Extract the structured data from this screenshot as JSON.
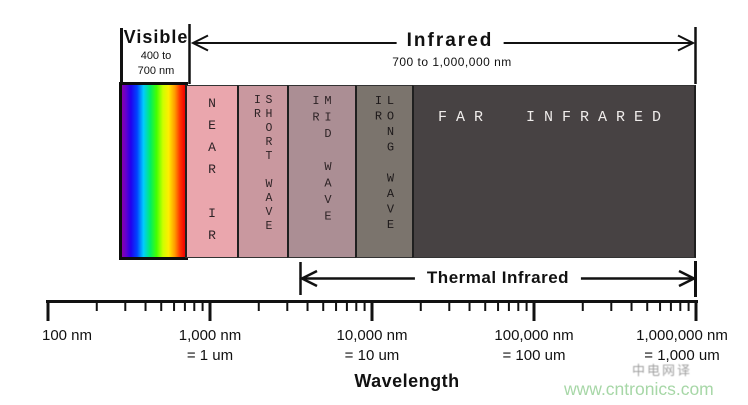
{
  "header": {
    "visible": {
      "label": "Visible",
      "range1": "400 to",
      "range2": "700 nm"
    },
    "infrared": {
      "label": "Infrared",
      "range": "700 to 1,000,000 nm"
    }
  },
  "bands": [
    {
      "name": "visible-spectrum",
      "label": "",
      "color": "rainbow-gradient"
    },
    {
      "name": "near-ir",
      "label": "NEAR IR",
      "color": "#eaa6ad",
      "text_color": "#2e2326"
    },
    {
      "name": "short-wave-ir",
      "label": "SHORT WAVE IR",
      "color": "#c9989f",
      "text_color": "#2e2326"
    },
    {
      "name": "mid-wave-ir",
      "label": "MID WAVE IR",
      "color": "#ab8e94",
      "text_color": "#2e2326"
    },
    {
      "name": "long-wave-ir",
      "label": "LONG WAVE IR",
      "color": "#7b746d",
      "text_color": "#1d191a"
    },
    {
      "name": "far-infrared",
      "label": "FAR INFRARED",
      "color": "#474243",
      "text_color": "#efeceb"
    }
  ],
  "thermal": {
    "label": "Thermal Infrared"
  },
  "chart_data": {
    "type": "diagram",
    "title": "Infrared spectrum regions",
    "axis": {
      "scale": "log10",
      "unit": "nm",
      "min_nm": 100,
      "max_nm": 1000000,
      "axis_title": "Wavelength",
      "major_ticks": [
        {
          "value": 100,
          "label": "100 nm",
          "sublabel": ""
        },
        {
          "value": 1000,
          "label": "1,000 nm",
          "sublabel": "= 1 um"
        },
        {
          "value": 10000,
          "label": "10,000 nm",
          "sublabel": "= 10 um"
        },
        {
          "value": 100000,
          "label": "100,000 nm",
          "sublabel": "= 100 um"
        },
        {
          "value": 1000000,
          "label": "1,000,000 nm",
          "sublabel": "= 1,000 um"
        }
      ],
      "minor_ticks_per_decade": [
        2,
        3,
        4,
        5,
        6,
        7,
        8,
        9
      ]
    },
    "regions": [
      {
        "label": "Visible",
        "range_nm": [
          400,
          700
        ]
      },
      {
        "label": "Infrared",
        "range_nm": [
          700,
          1000000
        ]
      },
      {
        "label": "Thermal Infrared",
        "note": "double-headed span arrow under MID/LONG/FAR IR bands"
      }
    ]
  },
  "watermark": {
    "cn_text": "中电网译",
    "site": "www.cntronics.com",
    "site_color": "#a7d7a7"
  }
}
